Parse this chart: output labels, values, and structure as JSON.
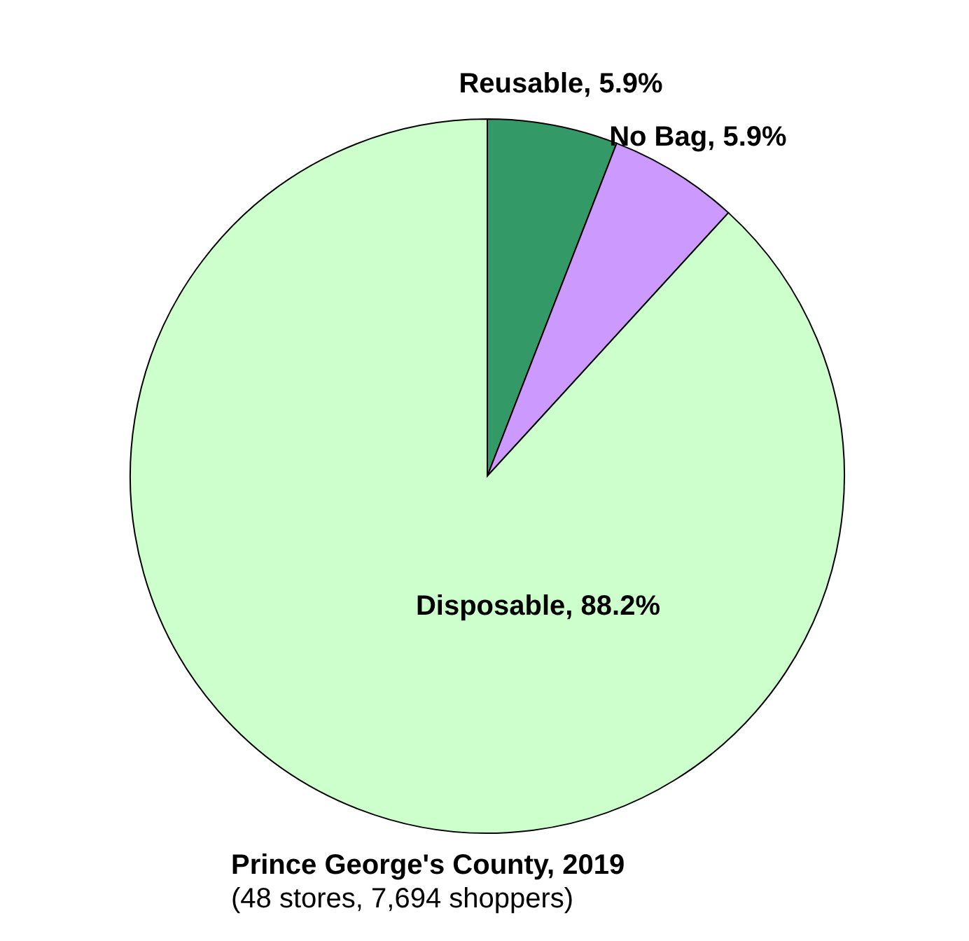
{
  "chart_data": {
    "type": "pie",
    "title": "Prince George's County, 2019",
    "subtitle": "(48 stores, 7,694 shoppers)",
    "categories": [
      "Reusable",
      "No Bag",
      "Disposable"
    ],
    "values": [
      5.9,
      5.9,
      88.2
    ],
    "colors": [
      "#339966",
      "#cc99ff",
      "#ccffcc"
    ],
    "value_labels": [
      "5.9%",
      "5.9%",
      "88.2%"
    ]
  }
}
